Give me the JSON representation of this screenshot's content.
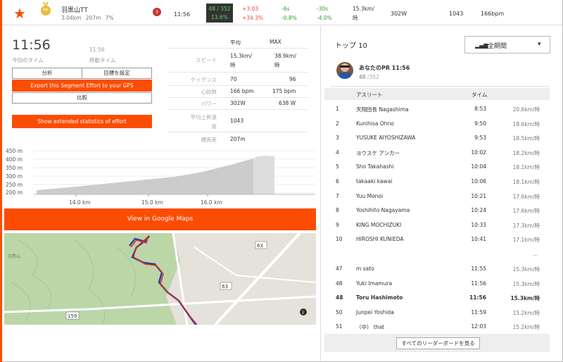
{
  "segment": {
    "name": "羽黒山TT",
    "distance": "3.04km",
    "elevation": "207m",
    "grade": "7%",
    "rank_badge": "3",
    "medal_label": "PR"
  },
  "topbar": {
    "time": "11:56",
    "rank": "48 / 352",
    "percentile": "13.6%",
    "diff_time": "+3:03",
    "diff_pct": "+34.3%",
    "diff2_time": "-6s",
    "diff2_pct": "-0.8%",
    "diff3_time": "-30s",
    "diff3_pct": "-4.0%",
    "speed_line1": "15.3km/",
    "speed_line2": "時",
    "power": "302W",
    "elev": "1043",
    "heartrate": "166bpm"
  },
  "effort": {
    "elapsed": "11:56",
    "elapsed_label": "今回のタイム",
    "moving": "11:56",
    "moving_label": "移動タイム",
    "buttons": {
      "analyze": "分析",
      "set_goal": "目標を設定",
      "export": "Export this Segment Effort to your GPS",
      "compare": "比較",
      "extended": "Show extended statistics of effort"
    }
  },
  "stats": {
    "col_avg": "平均",
    "col_max": "MAX",
    "rows": [
      {
        "label": "スピード",
        "avg": "15.3km/",
        "avg2": "時",
        "max": "38.9km/",
        "max2": "時"
      },
      {
        "label": "ケイデンス",
        "avg": "70",
        "max": "96"
      },
      {
        "label": "心拍数",
        "avg": "166 bpm",
        "max": "175 bpm"
      },
      {
        "label": "パワー",
        "avg": "302W",
        "max": "638 W"
      }
    ],
    "climb_label1": "平均上昇速",
    "climb_label2": "度",
    "climb_value": "1043",
    "elev_label": "標高差",
    "elev_value": "207m"
  },
  "elevation_chart": {
    "y_ticks": [
      "450 m",
      "400 m",
      "350 m",
      "300 m",
      "250 m",
      "200 m"
    ],
    "x_ticks": [
      "14.0 km",
      "15.0 km",
      "16.0 km"
    ]
  },
  "map": {
    "button": "View in Google Maps",
    "road_label_a": "63",
    "road_label_b": "63",
    "road_label_c": "159",
    "map_label_text": "羽黒山"
  },
  "leaderboard": {
    "title": "トップ 10",
    "filter": "全期間",
    "pr_name": "あなたのPR 11:56",
    "pr_rank": "48",
    "pr_total": "/352",
    "col_athlete": "アスリート",
    "col_time": "タイム",
    "rows": [
      {
        "rank": "1",
        "name": "天翔団長 Nagashima",
        "time": "8:53",
        "speed": "20.6km/時"
      },
      {
        "rank": "2",
        "name": "Kunihisa Ohno",
        "time": "9:50",
        "speed": "18.6km/時"
      },
      {
        "rank": "3",
        "name": "YUSUKE AIYOSHIZAWA",
        "time": "9:53",
        "speed": "18.5km/時"
      },
      {
        "rank": "4",
        "name": "ヨウスケ アンカー",
        "time": "10:02",
        "speed": "18.2km/時"
      },
      {
        "rank": "5",
        "name": "Sho Takahashi",
        "time": "10:04",
        "speed": "18.1km/時"
      },
      {
        "rank": "6",
        "name": "takaaki kawai",
        "time": "10:06",
        "speed": "18.1km/時"
      },
      {
        "rank": "7",
        "name": "Yuu Monoi",
        "time": "10:21",
        "speed": "17.6km/時"
      },
      {
        "rank": "8",
        "name": "Yoshihito Nagayama",
        "time": "10:24",
        "speed": "17.6km/時"
      },
      {
        "rank": "9",
        "name": "KING MOCHIZUKI",
        "time": "10:33",
        "speed": "17.3km/時"
      },
      {
        "rank": "10",
        "name": "HIROSHI KUNIEDA",
        "time": "10:41",
        "speed": "17.1km/時"
      }
    ],
    "ellipsis": "...",
    "rows_near": [
      {
        "rank": "47",
        "name": "m sato",
        "time": "11:55",
        "speed": "15.3km/時"
      },
      {
        "rank": "48",
        "name": "Yuki Imamura",
        "time": "11:56",
        "speed": "15.3km/時"
      },
      {
        "rank": "48",
        "name": "Toru Hashimoto",
        "time": "11:56",
        "speed": "15.3km/時",
        "me": true
      },
      {
        "rank": "50",
        "name": "Junpei Yoshida",
        "time": "11:59",
        "speed": "15.2km/時"
      },
      {
        "rank": "51",
        "name": "（中） that",
        "time": "12:03",
        "speed": "15.2km/時"
      }
    ],
    "footer": "すべてのリーダーボードを見る"
  }
}
